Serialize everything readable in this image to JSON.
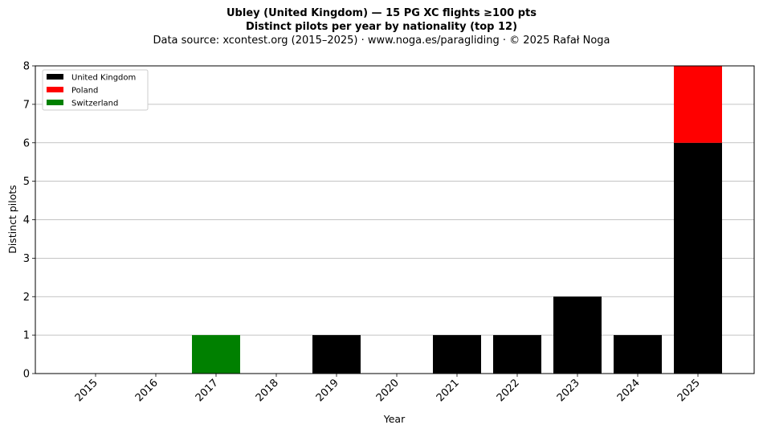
{
  "chart_data": {
    "type": "bar",
    "stacked": true,
    "title": "Ubley (United Kingdom)  —  15 PG XC flights ≥100 pts",
    "subtitle": "Distinct pilots per year by nationality (top 12)",
    "source": "Data source: xcontest.org (2015–2025)  ·  www.noga.es/paragliding  ·  © 2025 Rafał Noga",
    "xlabel": "Year",
    "ylabel": "Distinct pilots",
    "ylim": [
      0,
      8
    ],
    "yticks": [
      "0",
      "1",
      "2",
      "3",
      "4",
      "5",
      "6",
      "7",
      "8"
    ],
    "grid": "y",
    "legend": "top-left",
    "categories": [
      "2015",
      "2016",
      "2017",
      "2018",
      "2019",
      "2020",
      "2021",
      "2022",
      "2023",
      "2024",
      "2025"
    ],
    "series": [
      {
        "name": "United Kingdom",
        "color": "#000000",
        "values": [
          0,
          0,
          0,
          0,
          1,
          0,
          1,
          1,
          2,
          1,
          6
        ]
      },
      {
        "name": "Poland",
        "color": "#ff0000",
        "values": [
          0,
          0,
          0,
          0,
          0,
          0,
          0,
          0,
          0,
          0,
          2
        ]
      },
      {
        "name": "Switzerland",
        "color": "#008000",
        "values": [
          0,
          0,
          1,
          0,
          0,
          0,
          0,
          0,
          0,
          0,
          0
        ]
      }
    ]
  }
}
